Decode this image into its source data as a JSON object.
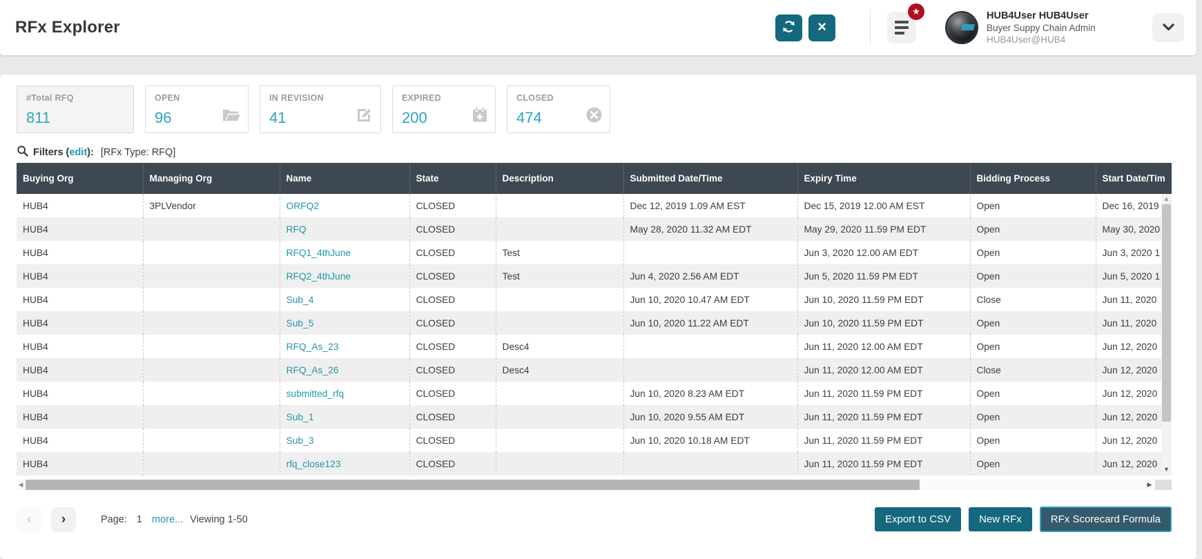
{
  "header": {
    "title": "RFx Explorer",
    "user": {
      "name": "HUB4User HUB4User",
      "role": "Buyer Suppy Chain Admin",
      "org": "HUB4User@HUB4"
    }
  },
  "icons": {
    "refresh": "refresh-icon",
    "close": "close-icon",
    "close_glyph": "×",
    "menu": "menu-icon",
    "star_badge_glyph": "★",
    "chevron_down": "chevron-down-icon",
    "search": "search-icon",
    "scroll_up_glyph": "▲",
    "scroll_down_glyph": "▼",
    "scroll_left_glyph": "◀",
    "scroll_right_glyph": "▶",
    "prev_glyph": "‹",
    "next_glyph": "›"
  },
  "stats": [
    {
      "label": "#Total RFQ",
      "value": "811",
      "icon": "none",
      "selected": true
    },
    {
      "label": "OPEN",
      "value": "96",
      "icon": "folder-open-icon",
      "selected": false
    },
    {
      "label": "IN REVISION",
      "value": "41",
      "icon": "edit-icon",
      "selected": false
    },
    {
      "label": "EXPIRED",
      "value": "200",
      "icon": "calendar-plus-icon",
      "selected": false
    },
    {
      "label": "CLOSED",
      "value": "474",
      "icon": "circle-x-icon",
      "selected": false
    }
  ],
  "filters": {
    "prefix": "Filters (",
    "edit_label": "edit",
    "suffix": "):",
    "applied": "[RFx Type: RFQ]"
  },
  "table": {
    "columns": [
      "Buying Org",
      "Managing Org",
      "Name",
      "State",
      "Description",
      "Submitted Date/Time",
      "Expiry Time",
      "Bidding Process",
      "Start Date/Tim"
    ],
    "rows": [
      [
        "HUB4",
        "3PLVendor",
        "ORFQ2",
        "CLOSED",
        "",
        "Dec 12, 2019 1.09 AM EST",
        "Dec 15, 2019 12.00 AM EST",
        "Open",
        "Dec 16, 2019"
      ],
      [
        "HUB4",
        "",
        "RFQ",
        "CLOSED",
        "",
        "May 28, 2020 11.32 AM EDT",
        "May 29, 2020 11.59 PM EDT",
        "Open",
        "May 30, 2020"
      ],
      [
        "HUB4",
        "",
        "RFQ1_4thJune",
        "CLOSED",
        "Test",
        "",
        "Jun 3, 2020 12.00 AM EDT",
        "Open",
        "Jun 3, 2020 1"
      ],
      [
        "HUB4",
        "",
        "RFQ2_4thJune",
        "CLOSED",
        "Test",
        "Jun 4, 2020 2.56 AM EDT",
        "Jun 5, 2020 11.59 PM EDT",
        "Open",
        "Jun 5, 2020 1"
      ],
      [
        "HUB4",
        "",
        "Sub_4",
        "CLOSED",
        "",
        "Jun 10, 2020 10.47 AM EDT",
        "Jun 10, 2020 11.59 PM EDT",
        "Close",
        "Jun 11, 2020"
      ],
      [
        "HUB4",
        "",
        "Sub_5",
        "CLOSED",
        "",
        "Jun 10, 2020 11.22 AM EDT",
        "Jun 10, 2020 11.59 PM EDT",
        "Open",
        "Jun 11, 2020"
      ],
      [
        "HUB4",
        "",
        "RFQ_As_23",
        "CLOSED",
        "Desc4",
        "",
        "Jun 11, 2020 12.00 AM EDT",
        "Open",
        "Jun 12, 2020"
      ],
      [
        "HUB4",
        "",
        "RFQ_As_26",
        "CLOSED",
        "Desc4",
        "",
        "Jun 11, 2020 12.00 AM EDT",
        "Close",
        "Jun 12, 2020"
      ],
      [
        "HUB4",
        "",
        "submitted_rfq",
        "CLOSED",
        "",
        "Jun 10, 2020 8.23 AM EDT",
        "Jun 11, 2020 11.59 PM EDT",
        "Open",
        "Jun 12, 2020"
      ],
      [
        "HUB4",
        "",
        "Sub_1",
        "CLOSED",
        "",
        "Jun 10, 2020 9.55 AM EDT",
        "Jun 11, 2020 11.59 PM EDT",
        "Open",
        "Jun 12, 2020"
      ],
      [
        "HUB4",
        "",
        "Sub_3",
        "CLOSED",
        "",
        "Jun 10, 2020 10.18 AM EDT",
        "Jun 11, 2020 11.59 PM EDT",
        "Open",
        "Jun 12, 2020"
      ],
      [
        "HUB4",
        "",
        "rfq_close123",
        "CLOSED",
        "",
        "",
        "Jun 11, 2020 11.59 PM EDT",
        "Open",
        "Jun 12, 2020"
      ]
    ]
  },
  "pagination": {
    "page_label": "Page:",
    "page_number": "1",
    "more_label": "more...",
    "viewing_label": "Viewing 1-50"
  },
  "actions": {
    "export_csv": "Export to CSV",
    "new_rfx": "New RFx",
    "scorecard": "RFx Scorecard Formula"
  },
  "colors": {
    "accent_teal": "#2096ad",
    "stat_number_teal": "#2fa3c0",
    "button_teal": "#15687d",
    "scorecard_button_bg": "#345a6b",
    "scorecard_button_border": "#2da0bc",
    "table_header_dark": "#3e4852",
    "row_stripe": "#efefef",
    "badge_red": "#b1101f"
  }
}
